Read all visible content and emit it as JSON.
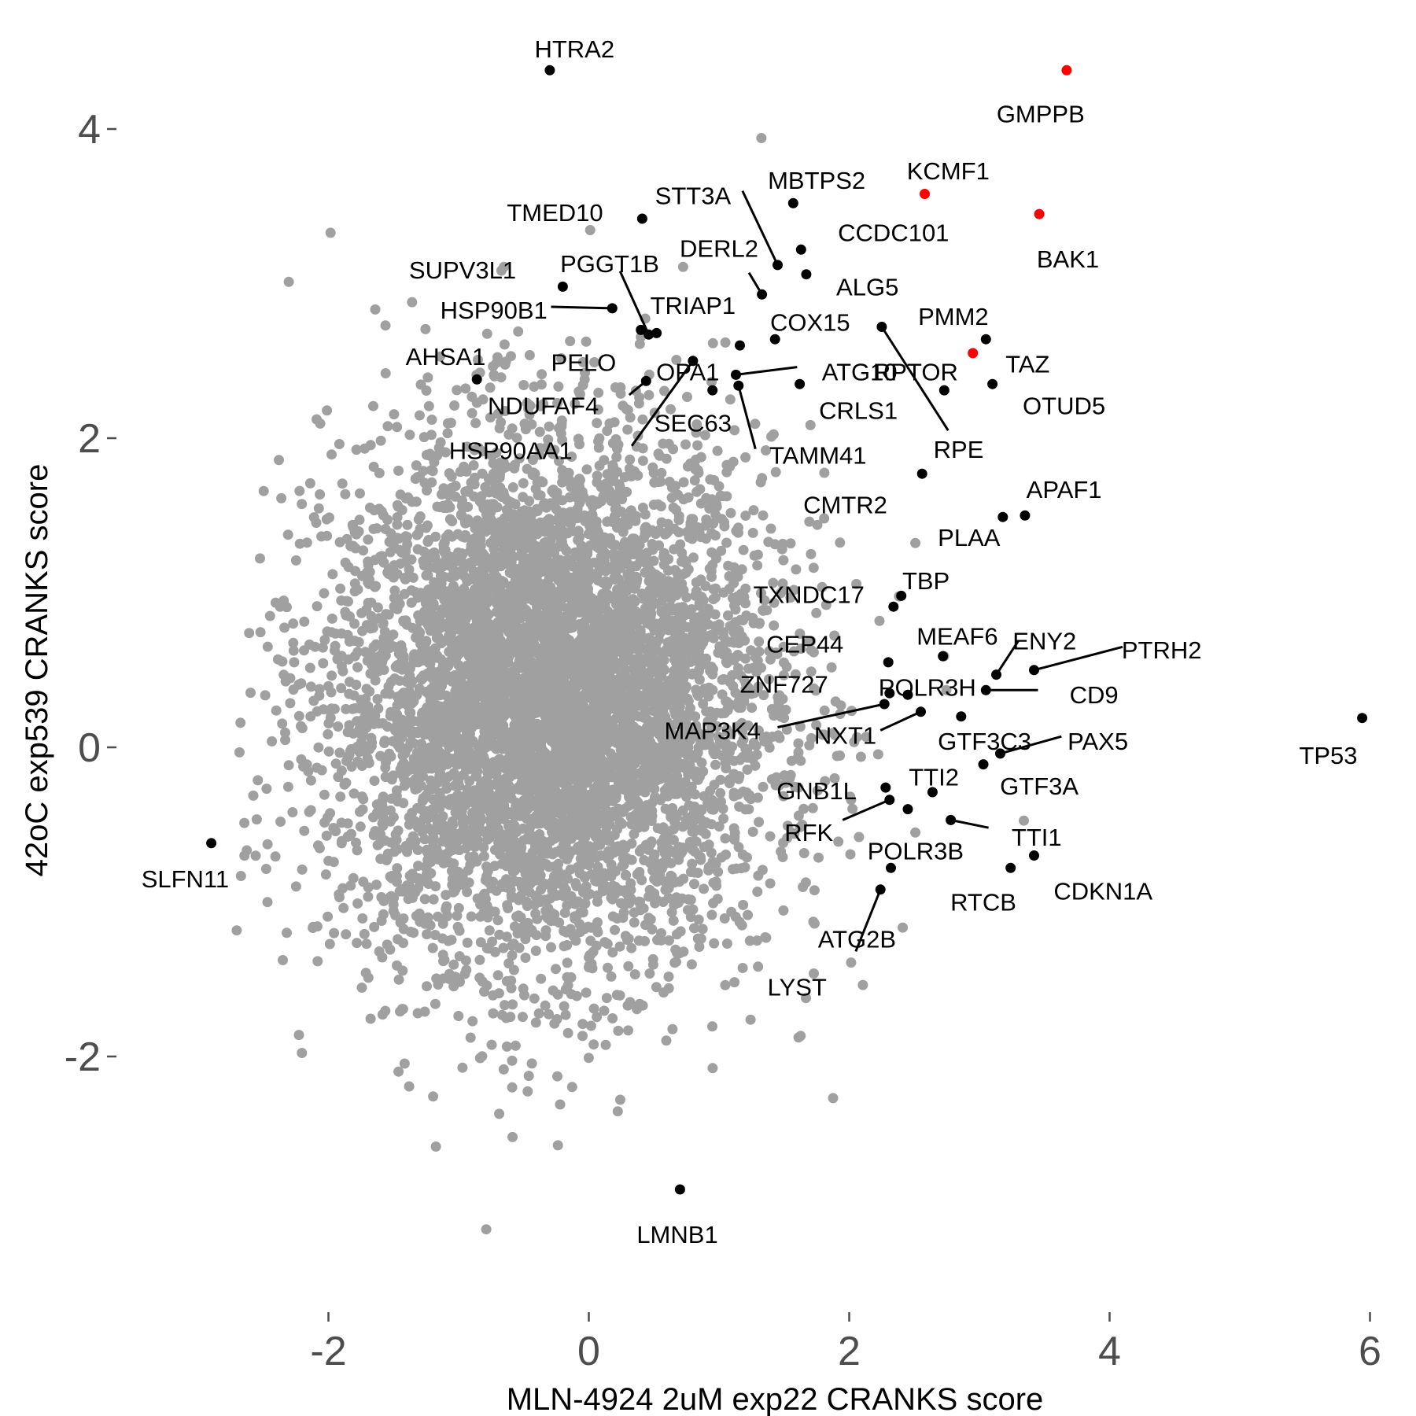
{
  "chart_data": {
    "type": "scatter",
    "title": "",
    "xlabel": "MLN-4924 2uM exp22 CRANKS score",
    "ylabel": "42oC exp539 CRANKS score",
    "xlim": [
      -3.3,
      6.2
    ],
    "ylim": [
      -3.6,
      4.5
    ],
    "xticks": [
      -2,
      0,
      2,
      4,
      6
    ],
    "yticks": [
      -2,
      0,
      2,
      4
    ],
    "xtick_labels": [
      "-2",
      "0",
      "2",
      "4",
      "6"
    ],
    "ytick_labels": [
      "-2",
      "0",
      "2",
      "4"
    ],
    "grid": false,
    "legend": "none",
    "colors": {
      "background_points": "#a0a0a0",
      "highlight_points": "#000000",
      "red_points": "#ff0000",
      "axis_text": "#4d4d4d"
    },
    "background_cloud": {
      "description_of_distribution": "bulk of genes",
      "center": [
        -0.3,
        0.3
      ],
      "sd": [
        0.85,
        0.85
      ],
      "approx_count": 6000
    },
    "highlighted_genes": [
      {
        "gene": "HTRA2",
        "x": -0.3,
        "y": 4.38,
        "color": "black"
      },
      {
        "gene": "GMPPB",
        "x": 3.67,
        "y": 4.38,
        "color": "red"
      },
      {
        "gene": "KCMF1",
        "x": 2.58,
        "y": 3.58,
        "color": "red"
      },
      {
        "gene": "BAK1",
        "x": 3.46,
        "y": 3.45,
        "color": "red"
      },
      {
        "gene": "MBTPS2",
        "x": 1.57,
        "y": 3.52,
        "color": "black"
      },
      {
        "gene": "STT3A",
        "x": 1.45,
        "y": 3.12,
        "color": "black"
      },
      {
        "gene": "TMED10",
        "x": 0.41,
        "y": 3.42,
        "color": "black"
      },
      {
        "gene": "CCDC101",
        "x": 1.63,
        "y": 3.22,
        "color": "black"
      },
      {
        "gene": "DERL2",
        "x": 1.33,
        "y": 2.93,
        "color": "black"
      },
      {
        "gene": "ALG5",
        "x": 1.67,
        "y": 3.06,
        "color": "black"
      },
      {
        "gene": "SUPV3L1",
        "x": -0.2,
        "y": 2.98,
        "color": "black"
      },
      {
        "gene": "HSP90B1",
        "x": 0.18,
        "y": 2.84,
        "color": "black"
      },
      {
        "gene": "PGGT1B",
        "x": 0.46,
        "y": 2.67,
        "color": "black"
      },
      {
        "gene": "TRIAP1",
        "x": 0.52,
        "y": 2.68,
        "color": "black"
      },
      {
        "gene": "COX15",
        "x": 1.43,
        "y": 2.64,
        "color": "black"
      },
      {
        "gene": "PMM2",
        "x": 3.05,
        "y": 2.64,
        "color": "black"
      },
      {
        "gene": "PELO",
        "x": 0.4,
        "y": 2.7,
        "color": "black"
      },
      {
        "gene": "OPA1",
        "x": 1.16,
        "y": 2.6,
        "color": "black"
      },
      {
        "gene": "ATG10",
        "x": 1.13,
        "y": 2.41,
        "color": "black"
      },
      {
        "gene": "RPTOR",
        "x": 2.95,
        "y": 2.55,
        "color": "red"
      },
      {
        "gene": "TAZ",
        "x": 3.1,
        "y": 2.35,
        "color": "black"
      },
      {
        "gene": "AHSA1",
        "x": -0.86,
        "y": 2.38,
        "color": "black"
      },
      {
        "gene": "NDUFAF4",
        "x": 0.44,
        "y": 2.37,
        "color": "black"
      },
      {
        "gene": "CRLS1",
        "x": 1.62,
        "y": 2.35,
        "color": "black"
      },
      {
        "gene": "OTUD5",
        "x": 2.73,
        "y": 2.31,
        "color": "black"
      },
      {
        "gene": "SEC63",
        "x": 0.95,
        "y": 2.31,
        "color": "black"
      },
      {
        "gene": "HSP90AA1",
        "x": 0.8,
        "y": 2.5,
        "color": "black"
      },
      {
        "gene": "TAMM41",
        "x": 1.15,
        "y": 2.34,
        "color": "black"
      },
      {
        "gene": "RPE",
        "x": 2.25,
        "y": 2.72,
        "color": "black"
      },
      {
        "gene": "CMTR2",
        "x": 2.56,
        "y": 1.77,
        "color": "black"
      },
      {
        "gene": "APAF1",
        "x": 3.35,
        "y": 1.5,
        "color": "black"
      },
      {
        "gene": "PLAA",
        "x": 3.18,
        "y": 1.49,
        "color": "black"
      },
      {
        "gene": "TBP",
        "x": 2.4,
        "y": 0.98,
        "color": "black"
      },
      {
        "gene": "TXNDC17",
        "x": 2.34,
        "y": 0.91,
        "color": "black"
      },
      {
        "gene": "MEAF6",
        "x": 2.72,
        "y": 0.59,
        "color": "black"
      },
      {
        "gene": "CEP44",
        "x": 2.3,
        "y": 0.55,
        "color": "black"
      },
      {
        "gene": "ENY2",
        "x": 3.13,
        "y": 0.47,
        "color": "black"
      },
      {
        "gene": "PTRH2",
        "x": 3.42,
        "y": 0.5,
        "color": "black"
      },
      {
        "gene": "POLR3H",
        "x": 2.45,
        "y": 0.34,
        "color": "black"
      },
      {
        "gene": "CD9",
        "x": 3.05,
        "y": 0.37,
        "color": "black"
      },
      {
        "gene": "ZNF727",
        "x": 2.31,
        "y": 0.35,
        "color": "black"
      },
      {
        "gene": "MAP3K4",
        "x": 2.27,
        "y": 0.28,
        "color": "black"
      },
      {
        "gene": "NXT1",
        "x": 2.55,
        "y": 0.23,
        "color": "black"
      },
      {
        "gene": "GTF3C3",
        "x": 2.86,
        "y": 0.2,
        "color": "black"
      },
      {
        "gene": "PAX5",
        "x": 3.16,
        "y": -0.04,
        "color": "black"
      },
      {
        "gene": "TP53",
        "x": 5.94,
        "y": 0.19,
        "color": "black"
      },
      {
        "gene": "GTF3A",
        "x": 3.03,
        "y": -0.11,
        "color": "black"
      },
      {
        "gene": "TTI2",
        "x": 2.64,
        "y": -0.29,
        "color": "black"
      },
      {
        "gene": "GNB1L",
        "x": 2.28,
        "y": -0.26,
        "color": "black"
      },
      {
        "gene": "RFK",
        "x": 2.31,
        "y": -0.34,
        "color": "black"
      },
      {
        "gene": "POLR3B",
        "x": 2.45,
        "y": -0.4,
        "color": "black"
      },
      {
        "gene": "TTI1",
        "x": 2.78,
        "y": -0.47,
        "color": "black"
      },
      {
        "gene": "SLFN11",
        "x": -2.9,
        "y": -0.62,
        "color": "black"
      },
      {
        "gene": "CDKN1A",
        "x": 3.42,
        "y": -0.7,
        "color": "black"
      },
      {
        "gene": "RTCB",
        "x": 3.24,
        "y": -0.78,
        "color": "black"
      },
      {
        "gene": "ATG2B",
        "x": 2.32,
        "y": -0.78,
        "color": "black"
      },
      {
        "gene": "LYST",
        "x": 2.24,
        "y": -0.92,
        "color": "black"
      },
      {
        "gene": "LMNB1",
        "x": 0.7,
        "y": -2.86,
        "color": "black"
      }
    ],
    "label_placements": [
      {
        "gene": "HTRA2",
        "lx": -0.11,
        "ly": 4.52,
        "anchor": "middle",
        "leader": false
      },
      {
        "gene": "GMPPB",
        "lx": 3.47,
        "ly": 4.1,
        "anchor": "middle",
        "leader": false
      },
      {
        "gene": "KCMF1",
        "lx": 2.76,
        "ly": 3.73,
        "anchor": "middle",
        "leader": false
      },
      {
        "gene": "BAK1",
        "lx": 3.68,
        "ly": 3.16,
        "anchor": "middle",
        "leader": false
      },
      {
        "gene": "MBTPS2",
        "lx": 1.75,
        "ly": 3.67,
        "anchor": "middle",
        "leader": false
      },
      {
        "gene": "STT3A",
        "lx": 0.8,
        "ly": 3.57,
        "anchor": "middle",
        "leader": true,
        "lex": 1.18,
        "ley": 3.6
      },
      {
        "gene": "TMED10",
        "lx": -0.26,
        "ly": 3.46,
        "anchor": "middle",
        "leader": false
      },
      {
        "gene": "CCDC101",
        "lx": 2.34,
        "ly": 3.33,
        "anchor": "middle",
        "leader": false
      },
      {
        "gene": "DERL2",
        "lx": 1.0,
        "ly": 3.23,
        "anchor": "middle",
        "leader": true,
        "lex": 1.23,
        "ley": 3.07
      },
      {
        "gene": "ALG5",
        "lx": 2.14,
        "ly": 2.98,
        "anchor": "middle",
        "leader": false
      },
      {
        "gene": "SUPV3L1",
        "lx": -0.97,
        "ly": 3.09,
        "anchor": "middle",
        "leader": false
      },
      {
        "gene": "HSP90B1",
        "lx": -0.73,
        "ly": 2.83,
        "anchor": "middle",
        "leader": true,
        "lex": -0.29,
        "ley": 2.85
      },
      {
        "gene": "PGGT1B",
        "lx": 0.16,
        "ly": 3.13,
        "anchor": "middle",
        "leader": true,
        "lex": 0.24,
        "ley": 3.08
      },
      {
        "gene": "TRIAP1",
        "lx": 0.8,
        "ly": 2.86,
        "anchor": "middle",
        "leader": false
      },
      {
        "gene": "COX15",
        "lx": 1.7,
        "ly": 2.75,
        "anchor": "middle",
        "leader": false
      },
      {
        "gene": "PMM2",
        "lx": 2.8,
        "ly": 2.79,
        "anchor": "middle",
        "leader": false
      },
      {
        "gene": "PELO",
        "lx": -0.04,
        "ly": 2.49,
        "anchor": "middle",
        "leader": false
      },
      {
        "gene": "OPA1",
        "lx": 0.76,
        "ly": 2.43,
        "anchor": "middle",
        "leader": false
      },
      {
        "gene": "ATG10",
        "lx": 2.08,
        "ly": 2.43,
        "anchor": "middle",
        "leader": true,
        "lex": 1.6,
        "ley": 2.46
      },
      {
        "gene": "RPTOR",
        "lx": 2.51,
        "ly": 2.43,
        "anchor": "middle",
        "leader": false
      },
      {
        "gene": "TAZ",
        "lx": 3.37,
        "ly": 2.48,
        "anchor": "middle",
        "leader": false
      },
      {
        "gene": "AHSA1",
        "lx": -1.1,
        "ly": 2.53,
        "anchor": "middle",
        "leader": false
      },
      {
        "gene": "NDUFAF4",
        "lx": -0.35,
        "ly": 2.21,
        "anchor": "middle",
        "leader": true,
        "lex": 0.31,
        "ley": 2.28
      },
      {
        "gene": "CRLS1",
        "lx": 2.07,
        "ly": 2.18,
        "anchor": "middle",
        "leader": false
      },
      {
        "gene": "OTUD5",
        "lx": 3.65,
        "ly": 2.21,
        "anchor": "middle",
        "leader": false
      },
      {
        "gene": "SEC63",
        "lx": 0.8,
        "ly": 2.1,
        "anchor": "middle",
        "leader": false
      },
      {
        "gene": "HSP90AA1",
        "lx": -0.6,
        "ly": 1.92,
        "anchor": "middle",
        "leader": true,
        "lex": 0.33,
        "ley": 1.95
      },
      {
        "gene": "TAMM41",
        "lx": 1.76,
        "ly": 1.89,
        "anchor": "middle",
        "leader": true,
        "lex": 1.28,
        "ley": 1.93
      },
      {
        "gene": "RPE",
        "lx": 2.84,
        "ly": 1.93,
        "anchor": "middle",
        "leader": true,
        "lex": 2.76,
        "ley": 2.05
      },
      {
        "gene": "CMTR2",
        "lx": 1.97,
        "ly": 1.57,
        "anchor": "middle",
        "leader": false
      },
      {
        "gene": "APAF1",
        "lx": 3.65,
        "ly": 1.67,
        "anchor": "middle",
        "leader": false
      },
      {
        "gene": "PLAA",
        "lx": 2.92,
        "ly": 1.36,
        "anchor": "middle",
        "leader": false
      },
      {
        "gene": "TBP",
        "lx": 2.59,
        "ly": 1.08,
        "anchor": "middle",
        "leader": false
      },
      {
        "gene": "TXNDC17",
        "lx": 1.69,
        "ly": 0.99,
        "anchor": "middle",
        "leader": false
      },
      {
        "gene": "MEAF6",
        "lx": 2.83,
        "ly": 0.72,
        "anchor": "middle",
        "leader": false
      },
      {
        "gene": "CEP44",
        "lx": 1.66,
        "ly": 0.67,
        "anchor": "middle",
        "leader": false
      },
      {
        "gene": "ENY2",
        "lx": 3.5,
        "ly": 0.69,
        "anchor": "middle",
        "leader": true,
        "lex": 3.3,
        "ley": 0.69
      },
      {
        "gene": "PTRH2",
        "lx": 4.4,
        "ly": 0.63,
        "anchor": "middle",
        "leader": true,
        "lex": 4.1,
        "ley": 0.65
      },
      {
        "gene": "POLR3H",
        "lx": 2.6,
        "ly": 0.39,
        "anchor": "middle",
        "leader": false
      },
      {
        "gene": "CD9",
        "lx": 3.88,
        "ly": 0.34,
        "anchor": "middle",
        "leader": true,
        "lex": 3.45,
        "ley": 0.37
      },
      {
        "gene": "ZNF727",
        "lx": 1.5,
        "ly": 0.41,
        "anchor": "middle",
        "leader": false
      },
      {
        "gene": "MAP3K4",
        "lx": 0.95,
        "ly": 0.11,
        "anchor": "middle",
        "leader": true,
        "lex": 1.45,
        "ley": 0.13
      },
      {
        "gene": "NXT1",
        "lx": 1.97,
        "ly": 0.08,
        "anchor": "middle",
        "leader": true,
        "lex": 2.24,
        "ley": 0.11
      },
      {
        "gene": "GTF3C3",
        "lx": 3.04,
        "ly": 0.04,
        "anchor": "middle",
        "leader": false
      },
      {
        "gene": "PAX5",
        "lx": 3.91,
        "ly": 0.04,
        "anchor": "middle",
        "leader": true,
        "lex": 3.63,
        "ley": 0.07
      },
      {
        "gene": "TP53",
        "lx": 5.68,
        "ly": -0.05,
        "anchor": "middle",
        "leader": false
      },
      {
        "gene": "GTF3A",
        "lx": 3.46,
        "ly": -0.25,
        "anchor": "middle",
        "leader": false
      },
      {
        "gene": "TTI2",
        "lx": 2.65,
        "ly": -0.19,
        "anchor": "middle",
        "leader": false
      },
      {
        "gene": "GNB1L",
        "lx": 1.75,
        "ly": -0.28,
        "anchor": "middle",
        "leader": false
      },
      {
        "gene": "RFK",
        "lx": 1.69,
        "ly": -0.55,
        "anchor": "middle",
        "leader": true,
        "lex": 1.95,
        "ley": -0.47
      },
      {
        "gene": "POLR3B",
        "lx": 2.51,
        "ly": -0.67,
        "anchor": "middle",
        "leader": false
      },
      {
        "gene": "TTI1",
        "lx": 3.44,
        "ly": -0.58,
        "anchor": "middle",
        "leader": true,
        "lex": 3.07,
        "ley": -0.52
      },
      {
        "gene": "SLFN11",
        "lx": -3.1,
        "ly": -0.85,
        "anchor": "middle",
        "leader": false
      },
      {
        "gene": "CDKN1A",
        "lx": 3.95,
        "ly": -0.93,
        "anchor": "middle",
        "leader": false
      },
      {
        "gene": "RTCB",
        "lx": 3.03,
        "ly": -1.0,
        "anchor": "middle",
        "leader": false
      },
      {
        "gene": "ATG2B",
        "lx": 2.06,
        "ly": -1.24,
        "anchor": "middle",
        "leader": false
      },
      {
        "gene": "LYST",
        "lx": 1.6,
        "ly": -1.55,
        "anchor": "middle",
        "leader": true,
        "lex": 2.05,
        "ley": -1.32
      },
      {
        "gene": "LMNB1",
        "lx": 0.68,
        "ly": -3.15,
        "anchor": "middle",
        "leader": false
      }
    ]
  }
}
